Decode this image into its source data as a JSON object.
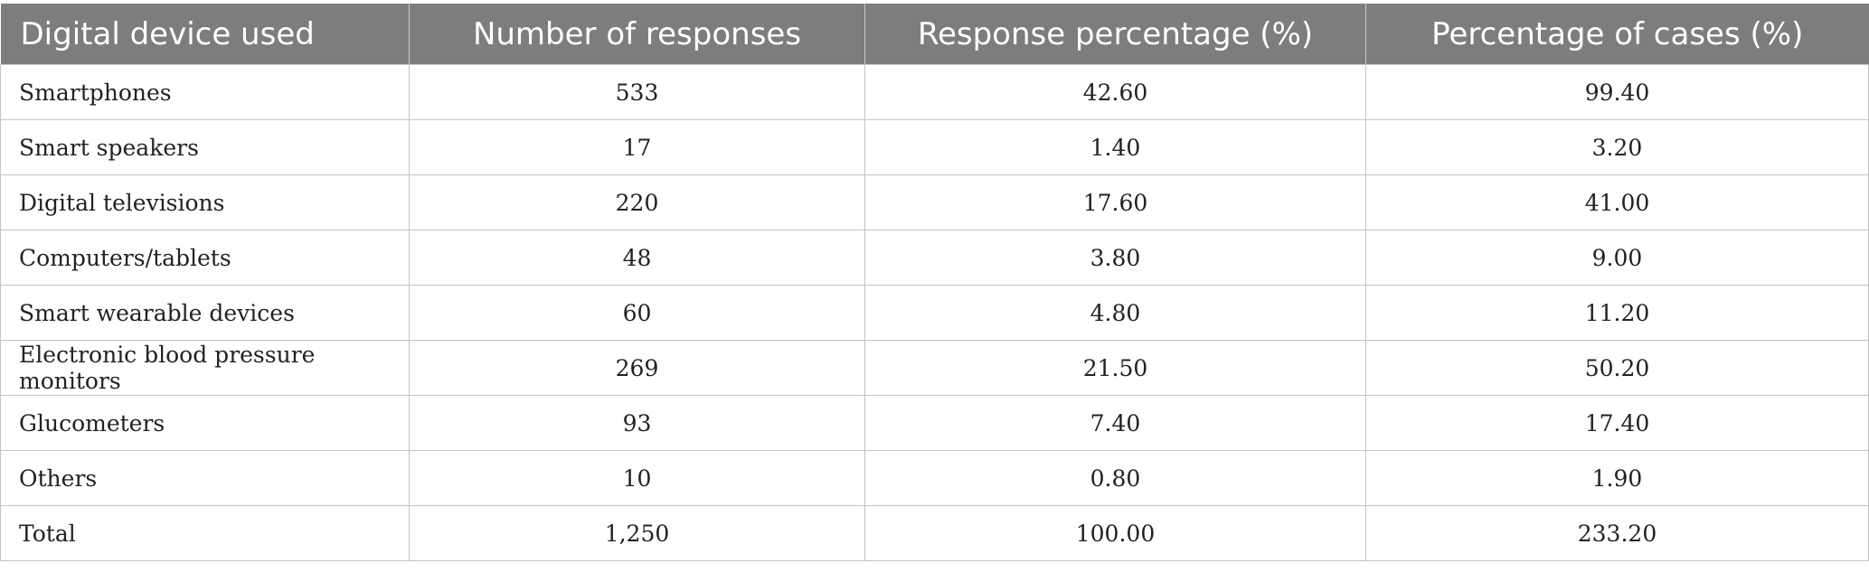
{
  "table": {
    "headers": [
      "Digital device used",
      "Number of responses",
      "Response percentage (%)",
      "Percentage of cases (%)"
    ],
    "rows": [
      [
        "Smartphones",
        "533",
        "42.60",
        "99.40"
      ],
      [
        "Smart speakers",
        "17",
        "1.40",
        "3.20"
      ],
      [
        "Digital televisions",
        "220",
        "17.60",
        "41.00"
      ],
      [
        "Computers/tablets",
        "48",
        "3.80",
        "9.00"
      ],
      [
        "Smart wearable devices",
        "60",
        "4.80",
        "11.20"
      ],
      [
        "Electronic blood pressure monitors",
        "269",
        "21.50",
        "50.20"
      ],
      [
        "Glucometers",
        "93",
        "7.40",
        "17.40"
      ],
      [
        "Others",
        "10",
        "0.80",
        "1.90"
      ],
      [
        "Total",
        "1,250",
        "100.00",
        "233.20"
      ]
    ]
  },
  "colors": {
    "header_bg": "#7c7d7c",
    "header_text": "#ffffff",
    "grid": "#c4c4c4"
  }
}
